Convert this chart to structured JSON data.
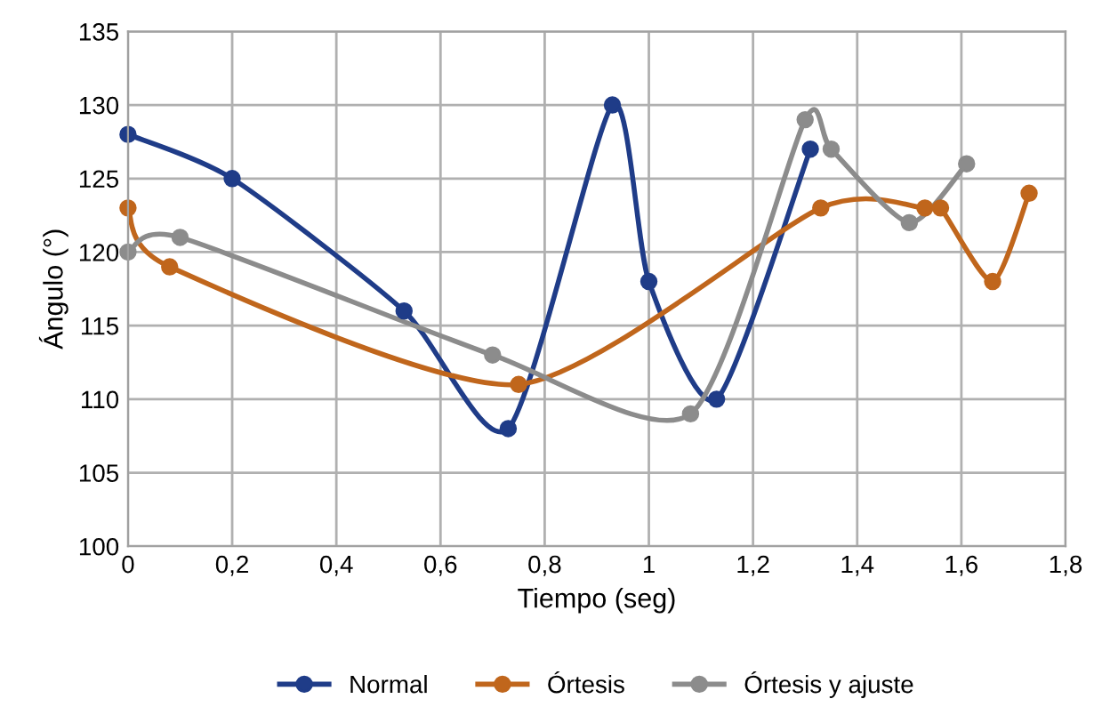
{
  "chart_data": {
    "type": "line",
    "xlabel": "Tiempo (seg)",
    "ylabel": "Ángulo (°)",
    "xlim": [
      0,
      1.8
    ],
    "ylim": [
      100,
      135
    ],
    "xticks": [
      0,
      {
        "value": 0.2,
        "label": "0,2"
      },
      {
        "value": 0.4,
        "label": "0,4"
      },
      {
        "value": 0.6,
        "label": "0,6"
      },
      {
        "value": 0.8,
        "label": "0,8"
      },
      1,
      {
        "value": 1.2,
        "label": "1,2"
      },
      {
        "value": 1.4,
        "label": "1,4"
      },
      {
        "value": 1.6,
        "label": "1,6"
      },
      {
        "value": 1.8,
        "label": "1,8"
      }
    ],
    "yticks": [
      100,
      105,
      110,
      115,
      120,
      125,
      130,
      135
    ],
    "grid": true,
    "legend": "bottom",
    "marker": "circle",
    "line_style": "solid",
    "series": [
      {
        "name": "Normal",
        "color": "#1f3c88",
        "x": [
          0,
          0.2,
          0.53,
          0.73,
          0.93,
          1.0,
          1.13,
          1.31
        ],
        "values": [
          128,
          125,
          116,
          108,
          130,
          118,
          110,
          127
        ]
      },
      {
        "name": "Órtesis",
        "color": "#c0661c",
        "x": [
          0,
          0.08,
          0.75,
          1.33,
          1.53,
          1.56,
          1.66,
          1.73
        ],
        "values": [
          123,
          119,
          111,
          123,
          123,
          123,
          118,
          124
        ]
      },
      {
        "name": "Órtesis y ajuste",
        "color": "#8c8c8c",
        "x": [
          0,
          0.1,
          0.7,
          1.08,
          1.3,
          1.35,
          1.5,
          1.61
        ],
        "values": [
          120,
          121,
          113,
          109,
          129,
          127,
          122,
          126
        ]
      }
    ]
  }
}
